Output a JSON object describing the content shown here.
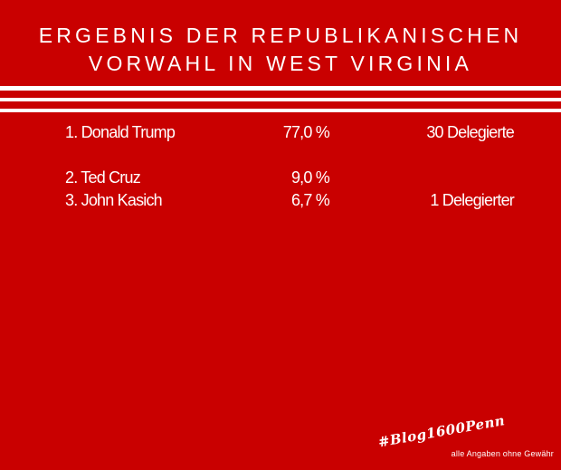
{
  "title": {
    "line1": "ERGEBNIS DER REPUBLIKANISCHEN",
    "line2": "VORWAHL IN WEST VIRGINIA"
  },
  "results": [
    {
      "name": "1.  Donald Trump",
      "percent": "77,0 %",
      "delegates": "30 Delegierte"
    },
    {
      "name": "2.  Ted Cruz",
      "percent": "9,0 %",
      "delegates": ""
    },
    {
      "name": "3.  John Kasich",
      "percent": "6,7 %",
      "delegates": "1 Delegierter"
    }
  ],
  "footer": {
    "brand": "#Blog1600Penn",
    "disclaimer": "alle Angaben ohne Gewähr"
  },
  "colors": {
    "background": "#c90000",
    "text": "#ffffff"
  }
}
